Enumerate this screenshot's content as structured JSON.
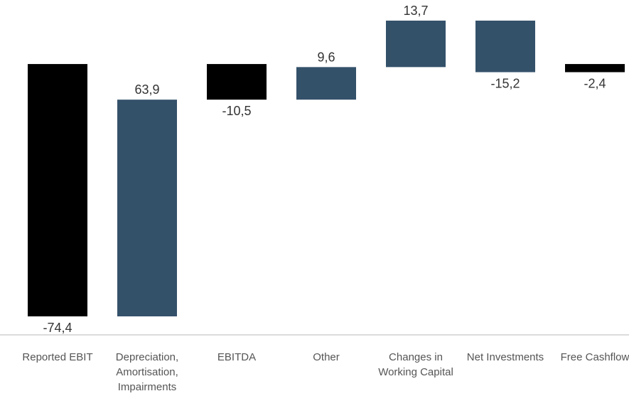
{
  "chart_data": {
    "type": "waterfall",
    "categories": [
      "Reported EBIT",
      "Depreciation, Amortisation, Impairments",
      "EBITDA",
      "Other",
      "Changes in Working Capital",
      "Net Investments",
      "Free Cashflow"
    ],
    "values": [
      -74.4,
      63.9,
      -10.5,
      9.6,
      13.7,
      -15.2,
      -2.4
    ],
    "value_labels": [
      "-74,4",
      "63,9",
      "-10,5",
      "9,6",
      "13,7",
      "-15,2",
      "-2,4"
    ],
    "kinds": [
      "total",
      "delta",
      "total",
      "delta",
      "delta",
      "delta",
      "total"
    ],
    "colors": {
      "total": "#000000",
      "delta": "#34516a"
    }
  }
}
